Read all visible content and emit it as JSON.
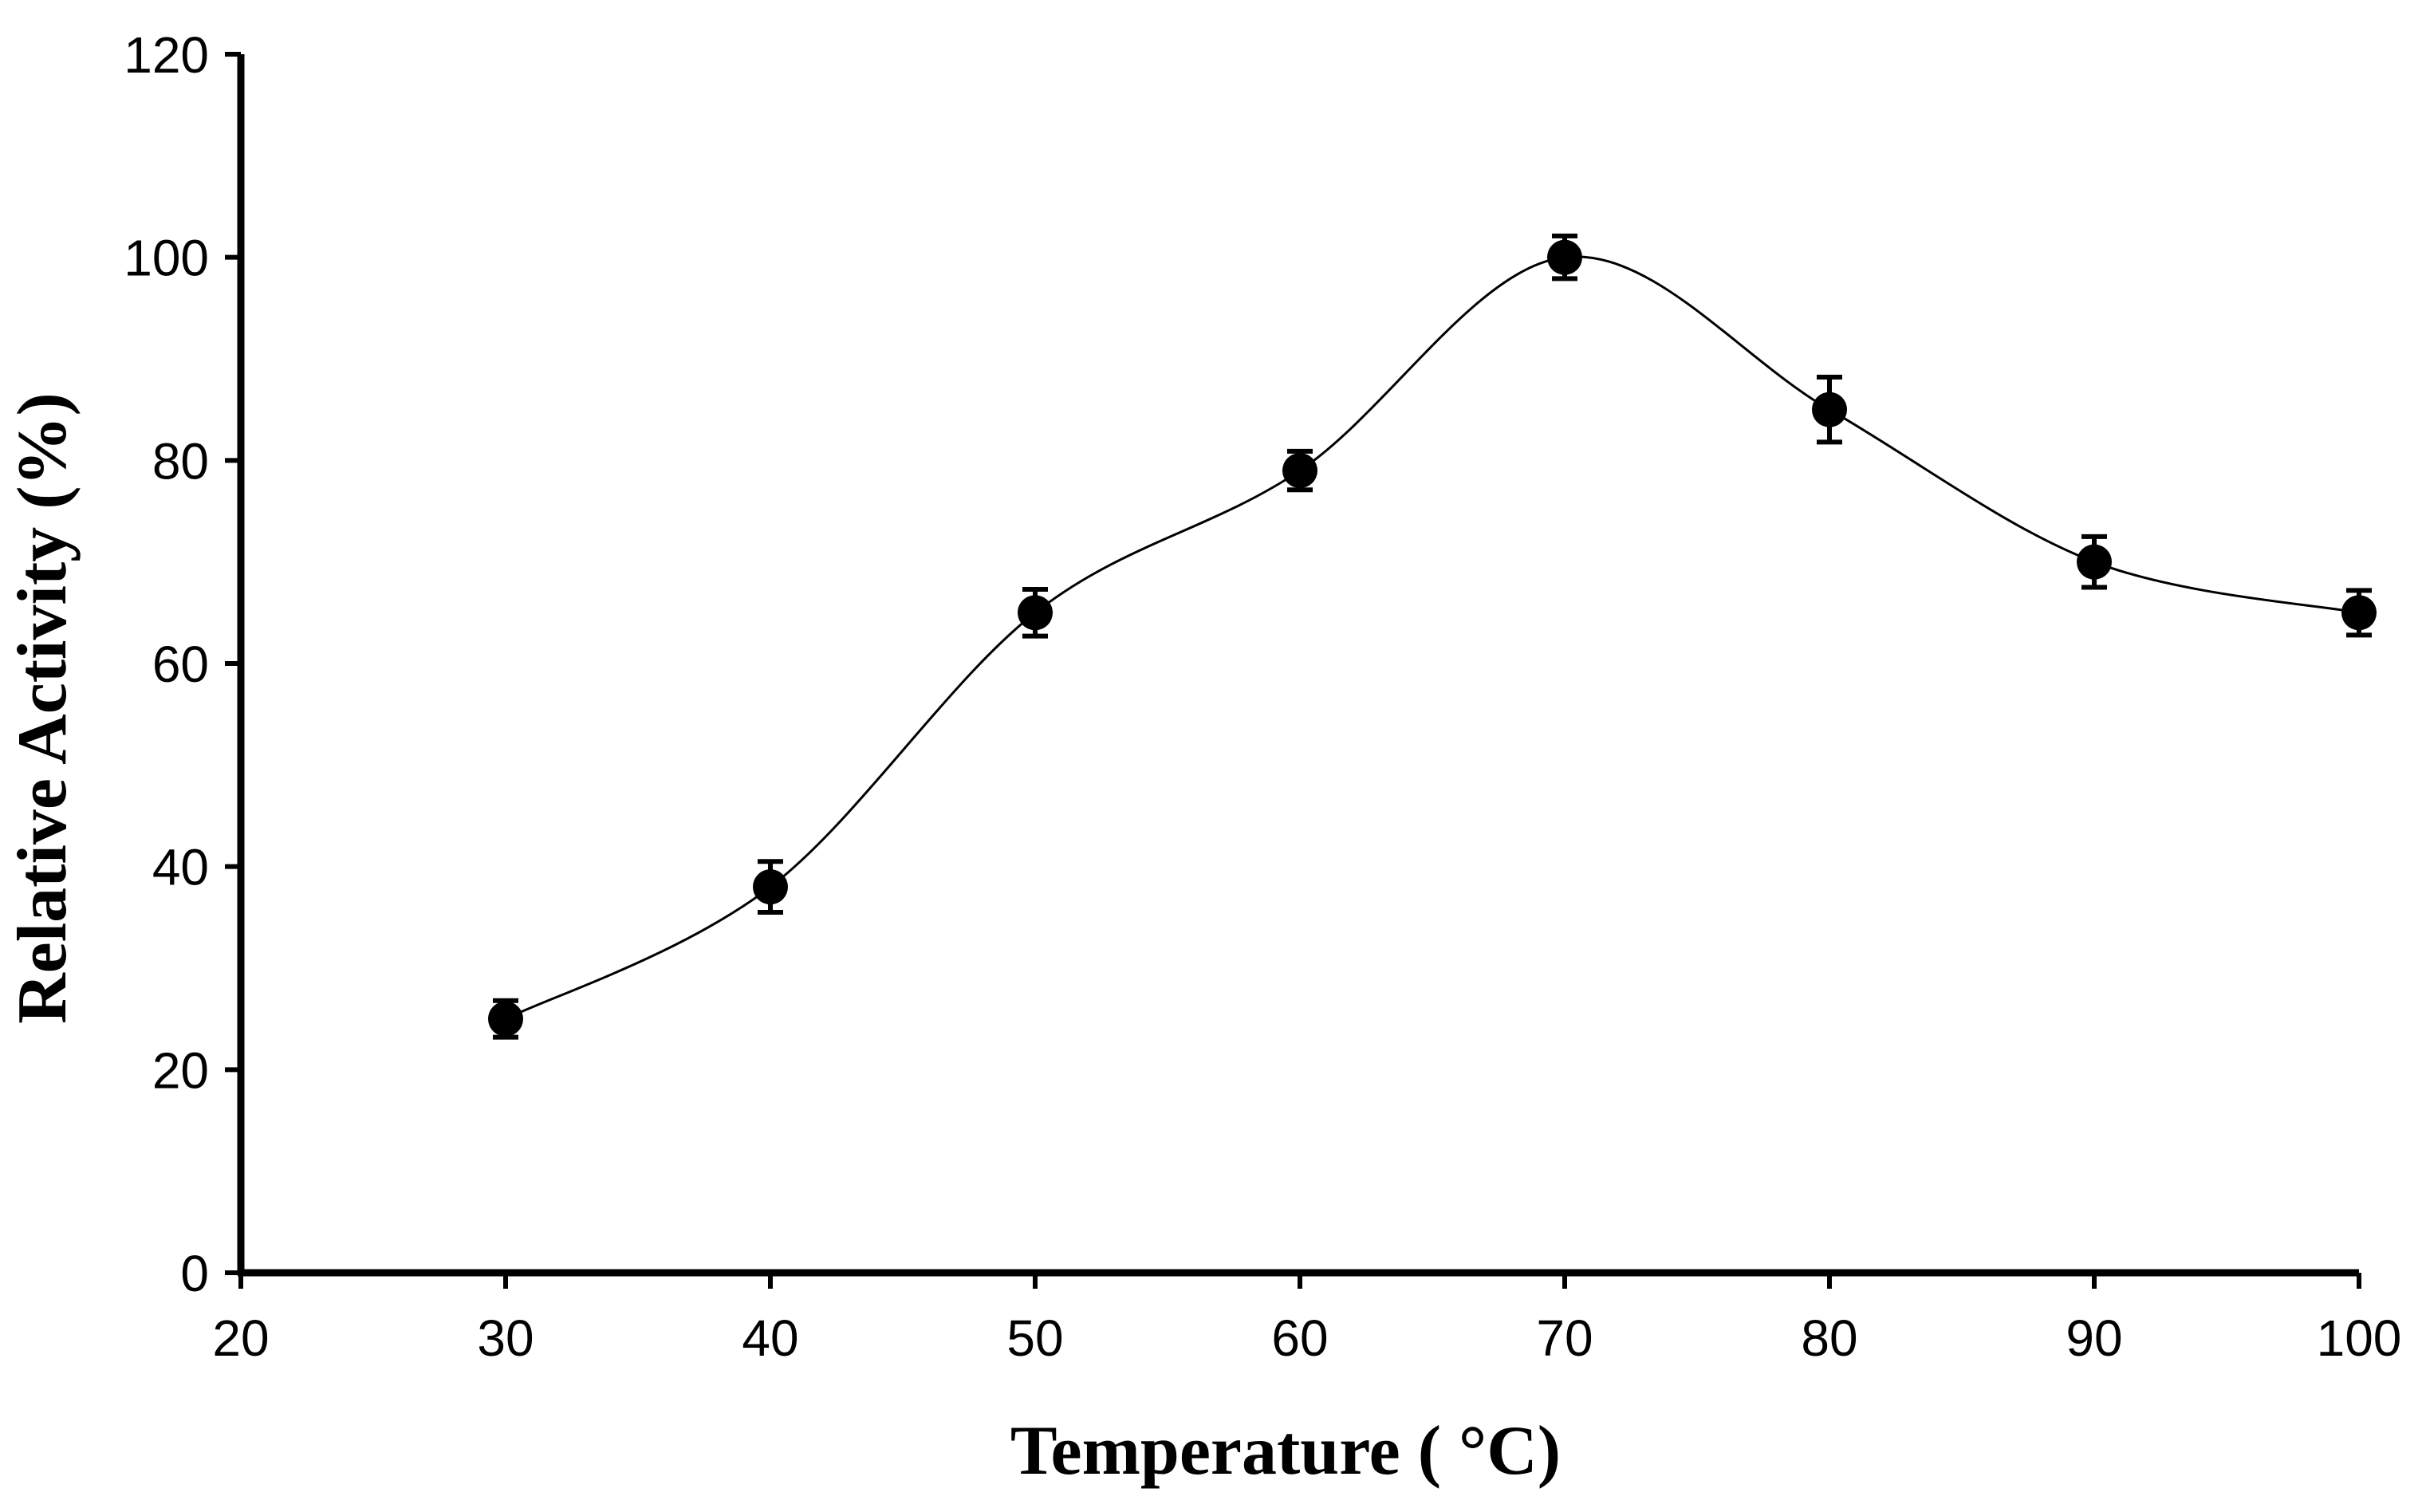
{
  "chart_data": {
    "type": "scatter",
    "title": "",
    "xlabel": "Temperature ( °C)",
    "ylabel": "Relative Activity (%)",
    "xlim": [
      20,
      100
    ],
    "ylim": [
      0,
      120
    ],
    "x_ticks": [
      20,
      30,
      40,
      50,
      60,
      70,
      80,
      90,
      100
    ],
    "y_ticks": [
      0,
      20,
      40,
      60,
      80,
      100,
      120
    ],
    "grid": false,
    "smooth_line": true,
    "series": [
      {
        "name": "Relative Activity",
        "x": [
          30,
          40,
          50,
          60,
          70,
          80,
          90,
          100
        ],
        "y": [
          25,
          38,
          65,
          79,
          100,
          85,
          70,
          65
        ],
        "error": [
          1.8,
          2.5,
          2.3,
          1.9,
          2.1,
          3.2,
          2.5,
          2.2
        ],
        "marker_color": "#000000",
        "line_color": "#000000"
      }
    ]
  }
}
